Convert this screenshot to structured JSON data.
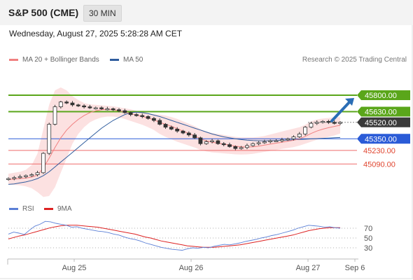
{
  "header": {
    "title": "S&P 500 (CME)",
    "timeframe": "30 MIN"
  },
  "datetime": "Wednesday, August 27, 2025 5:28:28 AM CET",
  "credit": "Research © 2025 Trading Central",
  "colors": {
    "ma20": "#f08080",
    "ma50": "#2f5d9e",
    "bollinger_fill": "#fbdcdc",
    "support_green": "#5aa61a",
    "resistance_red": "#ef6a6a",
    "pivot_blue": "#2a5bd7",
    "candle": "#333333",
    "rsi": "#5a7fd6",
    "rsi_ma": "#dd2222",
    "arrow": "#2a6db5"
  },
  "chart_data": [
    {
      "type": "candlestick",
      "name": "price",
      "legend": [
        {
          "label": "MA 20 + Bollinger Bands",
          "color": "#f08080"
        },
        {
          "label": "MA 50",
          "color": "#2f5d9e"
        }
      ],
      "x_ticks": [
        "Aug 25",
        "Aug 26",
        "Aug 27",
        "Sep 6"
      ],
      "ylim": [
        44760,
        46060
      ],
      "levels": [
        {
          "label": "45800.00",
          "value": 45800,
          "style": "green-line",
          "badge": "green"
        },
        {
          "label": "45630.00",
          "value": 45630,
          "style": "green-line",
          "badge": "green"
        },
        {
          "label": "45520.00",
          "value": 45520,
          "style": "dotted",
          "badge": "dark"
        },
        {
          "label": "45350.00",
          "value": 45350,
          "style": "blue-line",
          "badge": "blue"
        },
        {
          "label": "45230.00",
          "value": 45230,
          "style": "red-line",
          "badge": "none"
        },
        {
          "label": "45090.00",
          "value": 45090,
          "style": "red-line",
          "badge": "none"
        }
      ],
      "current_price": 45520,
      "series": {
        "close": [
          44940,
          44950,
          44960,
          44970,
          44980,
          45000,
          45200,
          45500,
          45680,
          45730,
          45720,
          45700,
          45690,
          45680,
          45670,
          45670,
          45660,
          45660,
          45650,
          45640,
          45620,
          45600,
          45590,
          45580,
          45560,
          45540,
          45500,
          45470,
          45450,
          45430,
          45410,
          45390,
          45360,
          45300,
          45320,
          45330,
          45300,
          45290,
          45270,
          45250,
          45260,
          45280,
          45300,
          45310,
          45320,
          45330,
          45330,
          45340,
          45350,
          45370,
          45400,
          45470,
          45510,
          45520,
          45530,
          45520,
          45510,
          45520
        ],
        "ma20": [
          44930,
          44935,
          44940,
          44945,
          44955,
          44975,
          45050,
          45150,
          45260,
          45360,
          45440,
          45500,
          45550,
          45590,
          45620,
          45640,
          45650,
          45655,
          45650,
          45640,
          45625,
          45610,
          45595,
          45580,
          45565,
          45545,
          45520,
          45500,
          45480,
          45455,
          45430,
          45405,
          45380,
          45350,
          45330,
          45315,
          45305,
          45295,
          45285,
          45275,
          45268,
          45265,
          45268,
          45275,
          45285,
          45295,
          45305,
          45315,
          45325,
          45335,
          45350,
          45375,
          45405,
          45430,
          45450,
          45465,
          45478,
          45490
        ],
        "bollinger_upper": [
          44990,
          45000,
          45010,
          45030,
          45080,
          45200,
          45450,
          45700,
          45850,
          45880,
          45850,
          45790,
          45750,
          45720,
          45705,
          45700,
          45695,
          45690,
          45685,
          45675,
          45665,
          45655,
          45640,
          45630,
          45615,
          45605,
          45600,
          45590,
          45575,
          45555,
          45530,
          45505,
          45480,
          45450,
          45425,
          45410,
          45400,
          45390,
          45380,
          45370,
          45365,
          45365,
          45365,
          45370,
          45380,
          45395,
          45410,
          45425,
          45440,
          45455,
          45470,
          45495,
          45530,
          45550,
          45560,
          45565,
          45570,
          45575
        ],
        "bollinger_lower": [
          44880,
          44875,
          44870,
          44860,
          44840,
          44800,
          44750,
          44760,
          44850,
          45000,
          45150,
          45300,
          45400,
          45470,
          45520,
          45550,
          45570,
          45580,
          45580,
          45570,
          45555,
          45535,
          45515,
          45495,
          45470,
          45440,
          45400,
          45370,
          45345,
          45320,
          45300,
          45280,
          45260,
          45235,
          45220,
          45210,
          45205,
          45200,
          45195,
          45190,
          45188,
          45190,
          45195,
          45205,
          45215,
          45225,
          45235,
          45245,
          45255,
          45265,
          45280,
          45300,
          45320,
          45340,
          45355,
          45370,
          45385,
          45405
        ],
        "ma50": [
          44880,
          44885,
          44895,
          44905,
          44920,
          44940,
          44970,
          45010,
          45060,
          45110,
          45160,
          45210,
          45260,
          45310,
          45360,
          45410,
          45460,
          45500,
          45540,
          45570,
          45600,
          45620,
          45625,
          45620,
          45610,
          45595,
          45580,
          45560,
          45540,
          45520,
          45500,
          45480,
          45460,
          45440,
          45420,
          45400,
          45385,
          45370,
          45360,
          45350,
          45342,
          45336,
          45332,
          45330,
          45330,
          45331,
          45333,
          45335,
          45337,
          45340,
          45343,
          45346,
          45349,
          45352,
          45355,
          45358,
          45361,
          45364
        ]
      },
      "forecast_arrow": {
        "from": 45520,
        "to": 45800
      }
    },
    {
      "type": "line",
      "name": "rsi",
      "legend": [
        {
          "label": "RSI",
          "color": "#5a7fd6"
        },
        {
          "label": "9MA",
          "color": "#dd2222"
        }
      ],
      "y_ticks": [
        "70",
        "50",
        "30"
      ],
      "ylim": [
        10,
        90
      ],
      "series": {
        "rsi": [
          58,
          62,
          60,
          57,
          66,
          74,
          78,
          84,
          83,
          80,
          78,
          76,
          72,
          73,
          70,
          68,
          66,
          64,
          63,
          61,
          58,
          56,
          52,
          49,
          47,
          44,
          40,
          37,
          34,
          31,
          29,
          27,
          26,
          25,
          28,
          30,
          29,
          31,
          30,
          33,
          35,
          37,
          36,
          38,
          40,
          43,
          45,
          47,
          50,
          52,
          55,
          57,
          60,
          63,
          66,
          70,
          73,
          76,
          75,
          74,
          72,
          73,
          71,
          70
        ],
        "rsi_ma": [
          48,
          51,
          54,
          56,
          59,
          62,
          65,
          68,
          71,
          73,
          75,
          76,
          76,
          76,
          75,
          74,
          73,
          72,
          70,
          68,
          66,
          64,
          62,
          60,
          58,
          55,
          52,
          50,
          47,
          44,
          42,
          40,
          38,
          36,
          34,
          33,
          32,
          31,
          31,
          31,
          32,
          33,
          34,
          35,
          36,
          38,
          40,
          42,
          44,
          46,
          48,
          50,
          52,
          54,
          56,
          59,
          62,
          65,
          67,
          69,
          70,
          71,
          71,
          71
        ]
      }
    }
  ]
}
